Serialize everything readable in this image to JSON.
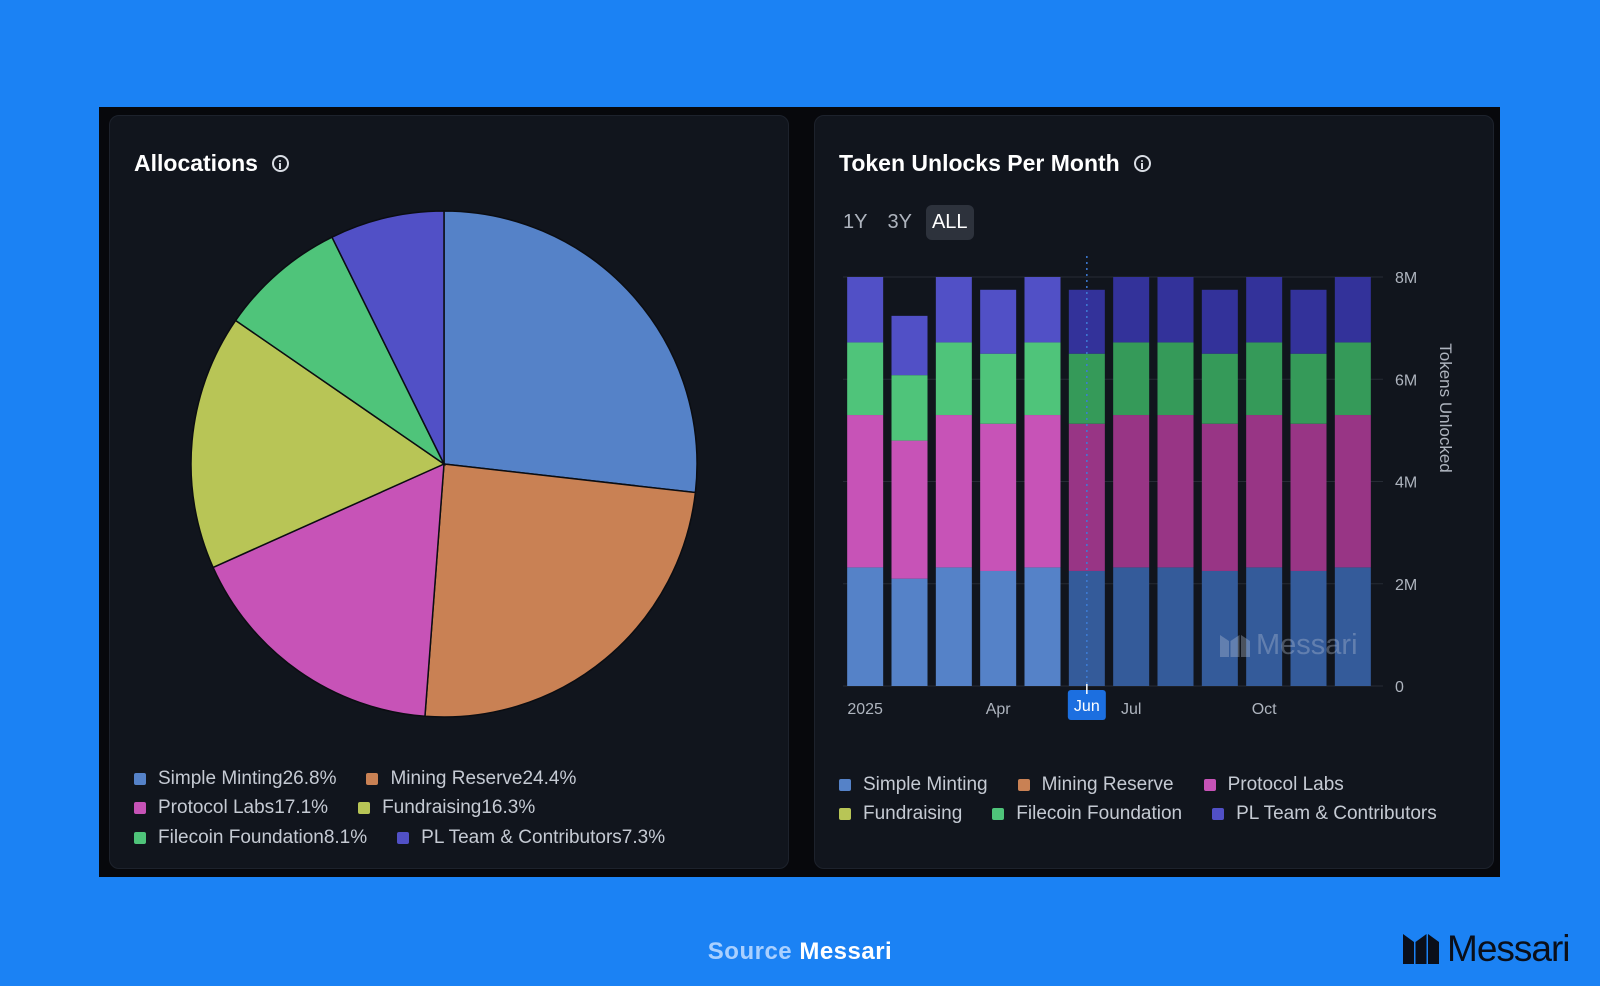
{
  "footer": {
    "source_label": "Source",
    "source_name": "Messari"
  },
  "logo": {
    "text": "Messari",
    "icon": "messari-logo-icon"
  },
  "allocations": {
    "title": "Allocations",
    "info_icon": "info-icon"
  },
  "unlocks": {
    "title": "Token Unlocks Per Month",
    "info_icon": "info-icon",
    "range_buttons": [
      {
        "label": "1Y",
        "active": false
      },
      {
        "label": "3Y",
        "active": false
      },
      {
        "label": "ALL",
        "active": true
      }
    ],
    "watermark": "Messari",
    "highlight_tick": "Jun"
  },
  "chart_data": [
    {
      "type": "pie",
      "title": "Allocations",
      "legend_placement": "bottom",
      "slices": [
        {
          "label": "Simple Minting",
          "pct_label": "26.8%",
          "value": 26.8,
          "color": "#5582c8"
        },
        {
          "label": "Mining Reserve",
          "pct_label": "24.4%",
          "value": 24.4,
          "color": "#c98154"
        },
        {
          "label": "Protocol Labs",
          "pct_label": "17.1%",
          "value": 17.1,
          "color": "#c753b7"
        },
        {
          "label": "Fundraising",
          "pct_label": "16.3%",
          "value": 16.3,
          "color": "#b8c556"
        },
        {
          "label": "Filecoin Foundation",
          "pct_label": "8.1%",
          "value": 8.1,
          "color": "#4fc47a"
        },
        {
          "label": "PL Team & Contributors",
          "pct_label": "7.3%",
          "value": 7.3,
          "color": "#5150c6"
        }
      ]
    },
    {
      "type": "bar",
      "stacked": true,
      "title": "Token Unlocks Per Month",
      "ylabel": "Tokens Unlocked",
      "ylim": [
        0,
        8000000
      ],
      "yticks": [
        0,
        2000000,
        4000000,
        6000000,
        8000000
      ],
      "ytick_labels": [
        "0",
        "2M",
        "4M",
        "6M",
        "8M"
      ],
      "y_axis_position": "right",
      "legend_placement": "bottom",
      "categories": [
        "2025-01",
        "2025-02",
        "2025-03",
        "2025-04",
        "2025-05",
        "2025-06",
        "2025-07",
        "2025-08",
        "2025-09",
        "2025-10",
        "2025-11",
        "2025-12"
      ],
      "x_tick_labels": [
        {
          "index": 0,
          "label": "2025"
        },
        {
          "index": 3,
          "label": "Apr"
        },
        {
          "index": 5,
          "label": "Jun"
        },
        {
          "index": 6,
          "label": "Jul"
        },
        {
          "index": 9,
          "label": "Oct"
        }
      ],
      "series": [
        {
          "name": "Simple Minting",
          "color": "#5582c8",
          "color_dim": "#345b9a",
          "values": [
            2320000,
            2100000,
            2320000,
            2250000,
            2320000,
            2250000,
            2320000,
            2320000,
            2250000,
            2320000,
            2250000,
            2320000
          ]
        },
        {
          "name": "Mining Reserve",
          "color": "#c98154",
          "color_dim": "#8f5a3a",
          "values": [
            0,
            0,
            0,
            0,
            0,
            0,
            0,
            0,
            0,
            0,
            0,
            0
          ]
        },
        {
          "name": "Protocol Labs",
          "color": "#c753b7",
          "color_dim": "#983585",
          "values": [
            2980000,
            2700000,
            2980000,
            2880000,
            2980000,
            2880000,
            2980000,
            2980000,
            2880000,
            2980000,
            2880000,
            2980000
          ]
        },
        {
          "name": "Fundraising",
          "color": "#b8c556",
          "color_dim": "#869040",
          "values": [
            0,
            0,
            0,
            0,
            0,
            0,
            0,
            0,
            0,
            0,
            0,
            0
          ]
        },
        {
          "name": "Filecoin Foundation",
          "color": "#4fc47a",
          "color_dim": "#359a59",
          "values": [
            1420000,
            1280000,
            1420000,
            1370000,
            1420000,
            1370000,
            1420000,
            1420000,
            1370000,
            1420000,
            1370000,
            1420000
          ]
        },
        {
          "name": "PL Team & Contributors",
          "color": "#5150c6",
          "color_dim": "#33329a",
          "values": [
            1280000,
            1160000,
            1280000,
            1250000,
            1280000,
            1250000,
            1280000,
            1280000,
            1250000,
            1280000,
            1250000,
            1280000
          ]
        }
      ],
      "highlighted_from_index": 5
    }
  ]
}
